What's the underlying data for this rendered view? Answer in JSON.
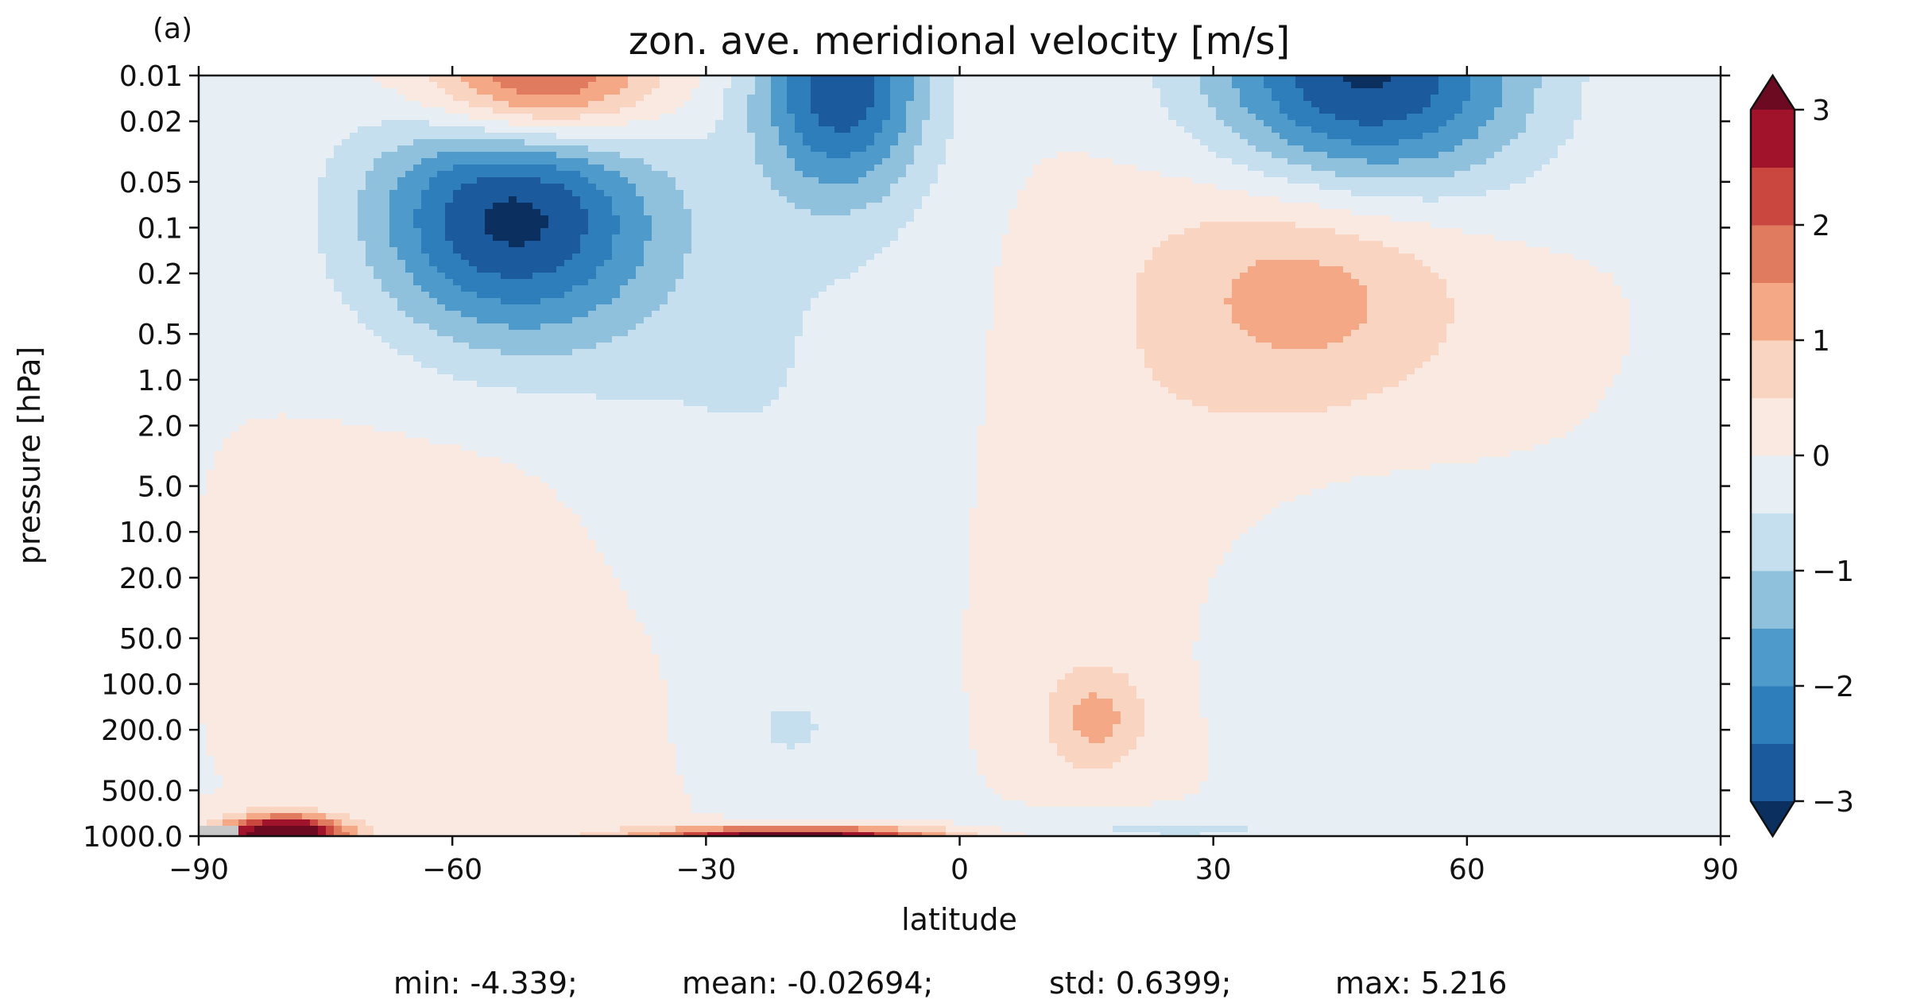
{
  "panel_label": "(a)",
  "stats": {
    "min": "min: -4.339;",
    "mean": "mean: -0.02694;",
    "std": "std: 0.6399;",
    "max": "max: 5.216"
  },
  "colors": {
    "levels": [
      {
        "from": -3.0,
        "to": -2.5,
        "color": "#1b5a9c"
      },
      {
        "from": -2.5,
        "to": -2.0,
        "color": "#2f7ebc"
      },
      {
        "from": -2.0,
        "to": -1.5,
        "color": "#4e9acb"
      },
      {
        "from": -1.5,
        "to": -1.0,
        "color": "#8fc1dc"
      },
      {
        "from": -1.0,
        "to": -0.5,
        "color": "#c6dfee"
      },
      {
        "from": -0.5,
        "to": 0.0,
        "color": "#e7eff5"
      },
      {
        "from": 0.0,
        "to": 0.5,
        "color": "#f9e9e1"
      },
      {
        "from": 0.5,
        "to": 1.0,
        "color": "#f9d5c1"
      },
      {
        "from": 1.0,
        "to": 1.5,
        "color": "#f4a886"
      },
      {
        "from": 1.5,
        "to": 2.0,
        "color": "#e07b60"
      },
      {
        "from": 2.0,
        "to": 2.5,
        "color": "#c9473f"
      },
      {
        "from": 2.5,
        "to": 3.0,
        "color": "#a1132a"
      }
    ],
    "under": "#0b2f5e",
    "over": "#6b0a20",
    "missing": "#c8c8c8"
  },
  "chart_data": {
    "type": "heatmap",
    "title": "zon. ave. meridional velocity [m/s]",
    "xlabel": "latitude",
    "ylabel": "pressure [hPa]",
    "xlim": [
      -90,
      90
    ],
    "ylim": [
      1000.0,
      0.01
    ],
    "yscale": "log",
    "x_ticks": [
      -90,
      -60,
      -30,
      0,
      30,
      60,
      90
    ],
    "x_tick_labels": [
      "−90",
      "−60",
      "−30",
      "0",
      "30",
      "60",
      "90"
    ],
    "y_ticks": [
      0.01,
      0.02,
      0.05,
      0.1,
      0.2,
      0.5,
      1.0,
      2.0,
      5.0,
      10.0,
      20.0,
      50.0,
      100.0,
      200.0,
      500.0,
      1000.0
    ],
    "y_tick_labels": [
      "0.01",
      "0.02",
      "0.05",
      "0.1",
      "0.2",
      "0.5",
      "1.0",
      "2.0",
      "5.0",
      "10.0",
      "20.0",
      "50.0",
      "100.0",
      "200.0",
      "500.0",
      "1000.0"
    ],
    "colorbar": {
      "ticks": [
        3,
        2,
        1,
        0,
        -1,
        -2,
        -3
      ],
      "tick_labels": [
        "3",
        "2",
        "1",
        "0",
        "−1",
        "−2",
        "−3"
      ],
      "range": [
        -3,
        3
      ],
      "extend": "both"
    },
    "features": [
      {
        "lat": -50,
        "p": 0.011,
        "amp": 3.0,
        "slat": 14,
        "sp": 0.45
      },
      {
        "lat": -53,
        "p": 0.08,
        "amp": -3.1,
        "slat": 17,
        "sp": 0.85
      },
      {
        "lat": -14,
        "p": 0.011,
        "amp": -2.8,
        "slat": 10,
        "sp": 0.75
      },
      {
        "lat": 48,
        "p": 0.011,
        "amp": -3.2,
        "slat": 19,
        "sp": 0.8
      },
      {
        "lat": 42,
        "p": 0.2,
        "amp": 1.3,
        "slat": 19,
        "sp": 0.9
      },
      {
        "lat": 16,
        "p": 170,
        "amp": 1.15,
        "slat": 6,
        "sp": 0.35
      },
      {
        "lat": -80,
        "p": 980,
        "amp": 4.5,
        "slat": 7,
        "sp": 0.12
      },
      {
        "lat": -20,
        "p": 1000,
        "amp": 3.5,
        "slat": 17,
        "sp": 0.06
      },
      {
        "lat": -55,
        "p": 30,
        "amp": 0.3,
        "slat": 22,
        "sp": 1.6
      },
      {
        "lat": 45,
        "p": 25,
        "amp": -0.35,
        "slat": 18,
        "sp": 0.9
      },
      {
        "lat": -20,
        "p": 200,
        "amp": -0.5,
        "slat": 8,
        "sp": 0.35
      },
      {
        "lat": -25,
        "p": 1.0,
        "amp": -0.5,
        "slat": 25,
        "sp": 1.6
      },
      {
        "lat": 20,
        "p": 3.0,
        "amp": 0.3,
        "slat": 22,
        "sp": 1.6
      },
      {
        "lat": 25,
        "p": 900,
        "amp": -0.6,
        "slat": 20,
        "sp": 0.1
      }
    ]
  }
}
